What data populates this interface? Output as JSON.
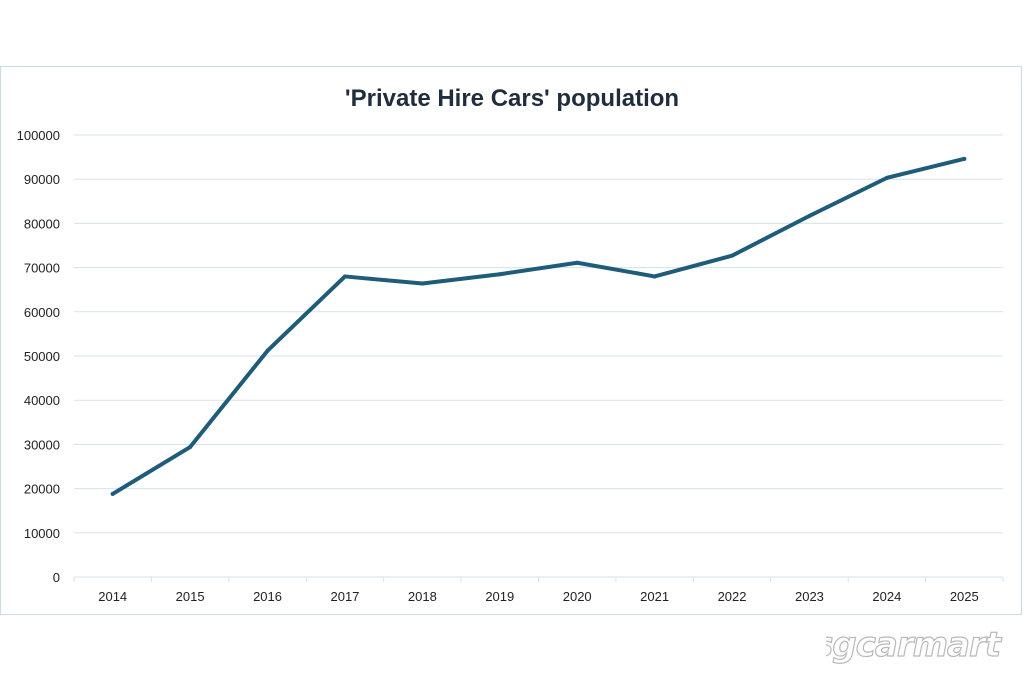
{
  "chart_data": {
    "type": "line",
    "title": "'Private Hire Cars' population",
    "xlabel": "",
    "ylabel": "",
    "categories": [
      "2014",
      "2015",
      "2016",
      "2017",
      "2018",
      "2019",
      "2020",
      "2021",
      "2022",
      "2023",
      "2024",
      "2025"
    ],
    "series": [
      {
        "name": "Private Hire Cars",
        "values": [
          18800,
          29400,
          51200,
          68000,
          66400,
          68500,
          71100,
          68000,
          72700,
          81700,
          90300,
          94600
        ]
      }
    ],
    "ylim": [
      0,
      100000
    ],
    "yticks": [
      "0",
      "10000",
      "20000",
      "30000",
      "40000",
      "50000",
      "60000",
      "70000",
      "80000",
      "90000",
      "100000"
    ],
    "grid": true,
    "legend": "none"
  },
  "colors": {
    "series": "#1f5c7a",
    "grid": "#d5e3ec"
  },
  "watermark": "sgcarmart"
}
